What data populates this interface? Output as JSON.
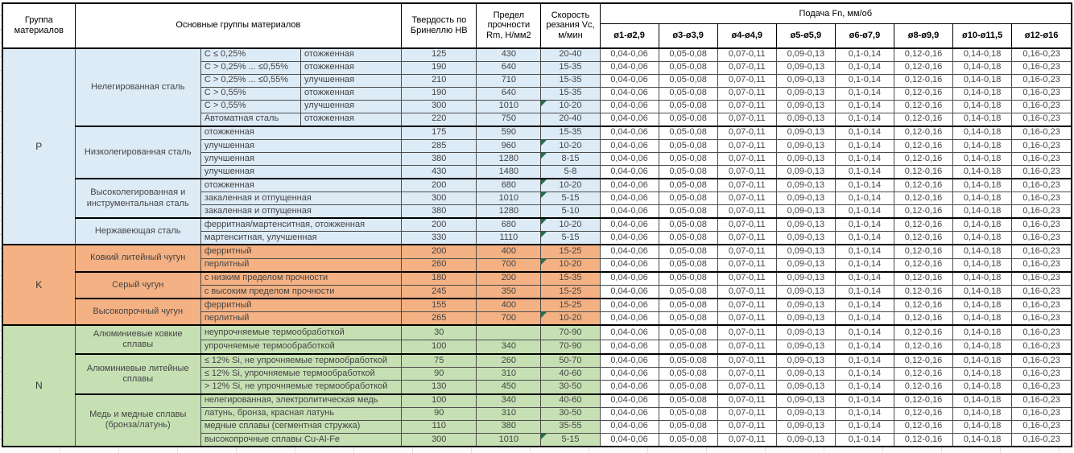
{
  "headers": {
    "group": "Группа материалов",
    "main_groups": "Основные группы материалов",
    "hardness": "Твердость по Бринеллю HB",
    "strength": "Предел прочности Rm, Н/мм2",
    "speed": "Скорость резания Vc, м/мин",
    "feed": "Подача Fn, мм/об",
    "feed_cols": [
      "ø1-ø2,9",
      "ø3-ø3,9",
      "ø4-ø4,9",
      "ø5-ø5,9",
      "ø6-ø7,9",
      "ø8-ø9,9",
      "ø10-ø11,5",
      "ø12-ø16"
    ]
  },
  "feed_values": [
    "0,04-0,06",
    "0,05-0,08",
    "0,07-0,11",
    "0,09-0,13",
    "0,1-0,14",
    "0,12-0,16",
    "0,14-0,18",
    "0,16-0,23"
  ],
  "colors": {
    "group_p": "#DDEBF7",
    "group_k": "#F4B183",
    "group_n": "#C6E0B4",
    "flag_triangle": "#1E7145",
    "border": "#000000"
  },
  "groups": [
    {
      "letter": "P",
      "color": "#DDEBF7",
      "blocks": [
        {
          "name": "Нелегированная сталь",
          "rows": [
            {
              "cond": "C ≤ 0,25%",
              "treat": "отожженная",
              "hb": "125",
              "rm": "430",
              "vc": "20-40",
              "flag": false
            },
            {
              "cond": "C > 0,25% ... ≤0,55%",
              "treat": "отожженная",
              "hb": "190",
              "rm": "640",
              "vc": "15-35",
              "flag": false
            },
            {
              "cond": "C > 0,25% ... ≤0,55%",
              "treat": "улучшенная",
              "hb": "210",
              "rm": "710",
              "vc": "15-35",
              "flag": false
            },
            {
              "cond": "C > 0,55%",
              "treat": "отожженная",
              "hb": "190",
              "rm": "640",
              "vc": "15-35",
              "flag": false
            },
            {
              "cond": "C > 0,55%",
              "treat": "улучшенная",
              "hb": "300",
              "rm": "1010",
              "vc": "10-20",
              "flag": true
            },
            {
              "cond": "Автоматная сталь",
              "treat": "отожженная",
              "hb": "220",
              "rm": "750",
              "vc": "20-40",
              "flag": false
            }
          ]
        },
        {
          "name": "Низколегированная сталь",
          "rows": [
            {
              "desc": "отожженная",
              "hb": "175",
              "rm": "590",
              "vc": "15-35",
              "flag": false
            },
            {
              "desc": "улучшенная",
              "hb": "285",
              "rm": "960",
              "vc": "10-20",
              "flag": true
            },
            {
              "desc": "улучшенная",
              "hb": "380",
              "rm": "1280",
              "vc": "8-15",
              "flag": true
            },
            {
              "desc": "улучшенная",
              "hb": "430",
              "rm": "1480",
              "vc": "5-8",
              "flag": false
            }
          ]
        },
        {
          "name": "Высоколегированная и инструментальная сталь",
          "rows": [
            {
              "desc": "отожженная",
              "hb": "200",
              "rm": "680",
              "vc": "10-20",
              "flag": true
            },
            {
              "desc": "закаленная и отпущенная",
              "hb": "300",
              "rm": "1010",
              "vc": "5-15",
              "flag": true
            },
            {
              "desc": "закаленная и отпущенная",
              "hb": "380",
              "rm": "1280",
              "vc": "5-10",
              "flag": false
            }
          ]
        },
        {
          "name": "Нержавеющая сталь",
          "rows": [
            {
              "desc": "ферритная/мартенситная, отожженная",
              "hb": "200",
              "rm": "680",
              "vc": "10-20",
              "flag": true
            },
            {
              "desc": "мартенситная, улучшенная",
              "hb": "330",
              "rm": "1110",
              "vc": "5-15",
              "flag": true
            }
          ]
        }
      ]
    },
    {
      "letter": "K",
      "color": "#F4B183",
      "blocks": [
        {
          "name": "Ковкий литейный чугун",
          "rows": [
            {
              "desc": "ферритный",
              "hb": "200",
              "rm": "400",
              "vc": "15-25",
              "flag": false
            },
            {
              "desc": "перлитный",
              "hb": "260",
              "rm": "700",
              "vc": "10-20",
              "flag": true
            }
          ]
        },
        {
          "name": "Серый чугун",
          "rows": [
            {
              "desc": "с низким пределом прочности",
              "hb": "180",
              "rm": "200",
              "vc": "15-35",
              "flag": false
            },
            {
              "desc": "с высоким пределом прочности",
              "hb": "245",
              "rm": "350",
              "vc": "15-25",
              "flag": false
            }
          ]
        },
        {
          "name": "Высокопрочный чугун",
          "rows": [
            {
              "desc": "ферритный",
              "hb": "155",
              "rm": "400",
              "vc": "15-25",
              "flag": false
            },
            {
              "desc": "перлитный",
              "hb": "265",
              "rm": "700",
              "vc": "10-20",
              "flag": true
            }
          ]
        }
      ]
    },
    {
      "letter": "N",
      "color": "#C6E0B4",
      "blocks": [
        {
          "name": "Алюминиевые ковкие сплавы",
          "rows": [
            {
              "desc": "неупрочняемые термообработкой",
              "hb": "30",
              "rm": "",
              "vc": "70-90",
              "flag": false
            },
            {
              "desc": "упрочняемые термообработкой",
              "hb": "100",
              "rm": "340",
              "vc": "70-90",
              "flag": false
            }
          ]
        },
        {
          "name": "Алюминиевые литейные сплавы",
          "rows": [
            {
              "desc": "≤ 12% Si, не упрочняемые термообработкой",
              "hb": "75",
              "rm": "260",
              "vc": "50-70",
              "flag": false
            },
            {
              "desc": "≤ 12% Si, упрочняемые термообработкой",
              "hb": "90",
              "rm": "310",
              "vc": "40-60",
              "flag": false
            },
            {
              "desc": "> 12% Si, не упрочняемые термообработкой",
              "hb": "130",
              "rm": "450",
              "vc": "30-50",
              "flag": false
            }
          ]
        },
        {
          "name": "Медь и медные сплавы (бронза/латунь)",
          "rows": [
            {
              "desc": "нелегированная, электролитическая медь",
              "hb": "100",
              "rm": "340",
              "vc": "40-60",
              "flag": false
            },
            {
              "desc": "латунь, бронза, красная латунь",
              "hb": "90",
              "rm": "310",
              "vc": "30-50",
              "flag": false
            },
            {
              "desc": "медные сплавы (сегментная стружка)",
              "hb": "110",
              "rm": "380",
              "vc": "35-55",
              "flag": false
            },
            {
              "desc": "высокопрочные сплавы Cu-Al-Fe",
              "hb": "300",
              "rm": "1010",
              "vc": "5-15",
              "flag": true
            }
          ]
        }
      ]
    }
  ]
}
